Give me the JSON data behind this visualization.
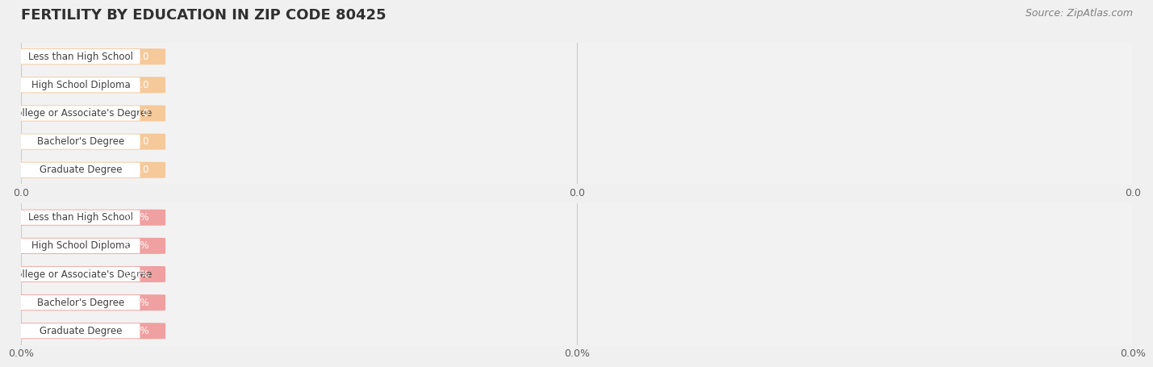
{
  "title": "FERTILITY BY EDUCATION IN ZIP CODE 80425",
  "source_text": "Source: ZipAtlas.com",
  "background_color": "#f0f0f0",
  "chart_bg_color": "#ffffff",
  "categories": [
    "Less than High School",
    "High School Diploma",
    "College or Associate's Degree",
    "Bachelor's Degree",
    "Graduate Degree"
  ],
  "top_values": [
    0.0,
    0.0,
    0.0,
    0.0,
    0.0
  ],
  "top_bar_color": "#f5c99a",
  "top_label_color": "#f5c99a",
  "top_value_format": "0.0",
  "bottom_values": [
    0.0,
    0.0,
    0.0,
    0.0,
    0.0
  ],
  "bottom_bar_color": "#f0a0a0",
  "bottom_label_color": "#f0a0a0",
  "bottom_value_format": "0.0%",
  "bar_height": 0.55,
  "label_bg_color": "#ffffff",
  "label_text_color": "#404040",
  "value_text_color": "#ffffff",
  "grid_color": "#cccccc",
  "tick_label_color": "#606060",
  "title_color": "#303030",
  "source_color": "#808080",
  "xlim": [
    0,
    1.0
  ],
  "x_ticks": [
    0.0,
    0.5,
    1.0
  ],
  "top_x_tick_labels": [
    "0.0",
    "0.0",
    "0.0"
  ],
  "bottom_x_tick_labels": [
    "0.0%",
    "0.0%",
    "0.0%"
  ],
  "row_bg_even": "#f7f7f7",
  "row_bg_odd": "#efefef",
  "panel_bg": "#e8e8e8"
}
